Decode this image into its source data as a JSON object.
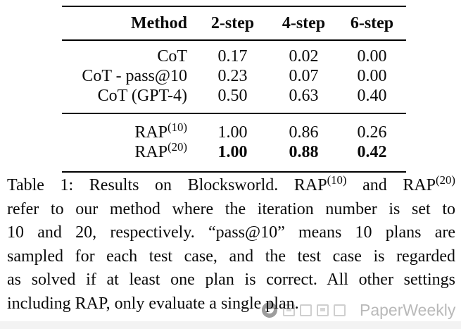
{
  "table": {
    "headers": [
      "Method",
      "2-step",
      "4-step",
      "6-step"
    ],
    "groups": [
      {
        "rows": [
          {
            "method": [
              {
                "t": "CoT"
              }
            ],
            "values": [
              "0.17",
              "0.02",
              "0.00"
            ],
            "bold": false
          },
          {
            "method": [
              {
                "t": "CoT - pass@10"
              }
            ],
            "values": [
              "0.23",
              "0.07",
              "0.00"
            ],
            "bold": false
          },
          {
            "method": [
              {
                "t": "CoT (GPT-4)"
              }
            ],
            "values": [
              "0.50",
              "0.63",
              "0.40"
            ],
            "bold": false
          }
        ]
      },
      {
        "rows": [
          {
            "method": [
              {
                "t": "RAP"
              },
              {
                "t": "(10)",
                "sup": true
              }
            ],
            "values": [
              "1.00",
              "0.86",
              "0.26"
            ],
            "bold": false
          },
          {
            "method": [
              {
                "t": "RAP"
              },
              {
                "t": "(20)",
                "sup": true
              }
            ],
            "values": [
              "1.00",
              "0.88",
              "0.42"
            ],
            "bold": true
          }
        ]
      }
    ]
  },
  "caption": {
    "label": "Table 1",
    "lines": [
      [
        {
          "t": "Table 1: Results on Blocksworld. RAP"
        },
        {
          "t": "(10)",
          "sup": true
        },
        {
          "t": " and RAP"
        },
        {
          "t": "(20)",
          "sup": true
        }
      ],
      [
        {
          "t": "refer to our method where the iteration number is set to"
        }
      ],
      [
        {
          "t": "10 and 20, respectively. “pass@10” means 10 plans are"
        }
      ],
      [
        {
          "t": "sampled for each test case, and the test case is regarded"
        }
      ],
      [
        {
          "t": "as solved if at least one plan is correct. All other settings"
        }
      ],
      [
        {
          "t": "including RAP, only evaluate a single plan."
        }
      ]
    ]
  },
  "watermark": {
    "brand": "PaperWeekly",
    "icon": "chat-logo-icon",
    "color": "#b9b9b9"
  }
}
